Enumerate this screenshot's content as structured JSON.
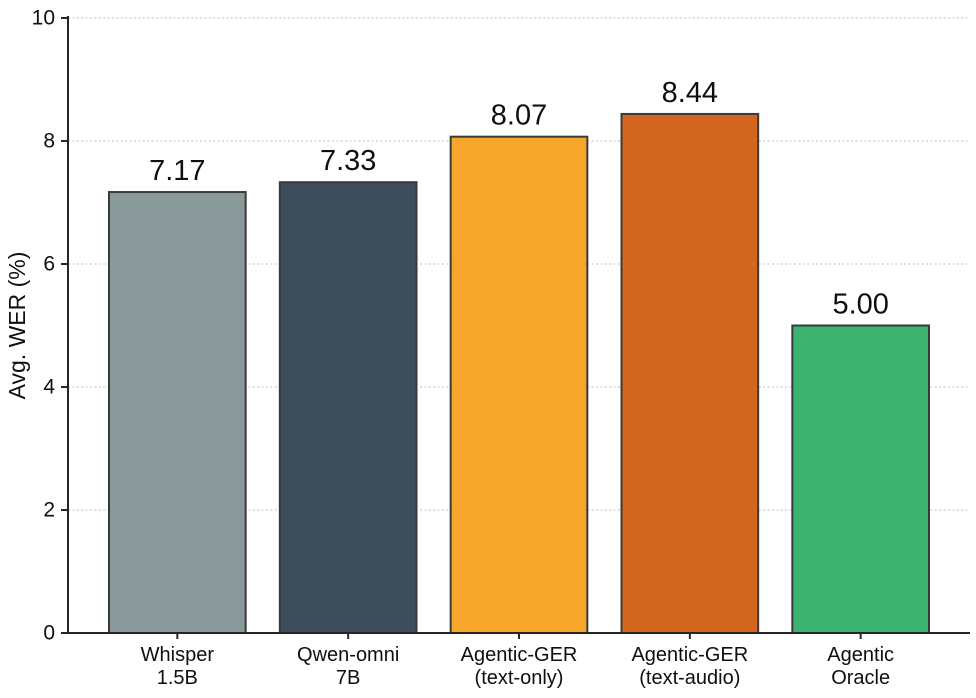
{
  "figure": {
    "background": "#ffffff"
  },
  "chart_data": {
    "type": "bar",
    "title": "",
    "xlabel": "",
    "ylabel": "Avg. WER (%)",
    "ylim": [
      0,
      10
    ],
    "yticks": [
      0,
      2,
      4,
      6,
      8,
      10
    ],
    "grid": "horizontal-dashed",
    "legend": "none",
    "categories": [
      "Whisper\n1.5B",
      "Qwen-omni\n7B",
      "Agentic-GER\n(text-only)",
      "Agentic-GER\n(text-audio)",
      "Agentic\nOracle"
    ],
    "values": [
      7.17,
      7.33,
      8.07,
      8.44,
      5.0
    ],
    "value_labels": [
      "7.17",
      "7.33",
      "8.07",
      "8.44",
      "5.00"
    ],
    "bar_colors": [
      "#8a999a",
      "#3e4d5c",
      "#f6a62b",
      "#d2661f",
      "#3cb271"
    ],
    "bar_edge_color": "#3a3a3a",
    "grid_color": "#cbcbcb",
    "axis_color": "#262626",
    "text_color": "#0f0f0f"
  }
}
